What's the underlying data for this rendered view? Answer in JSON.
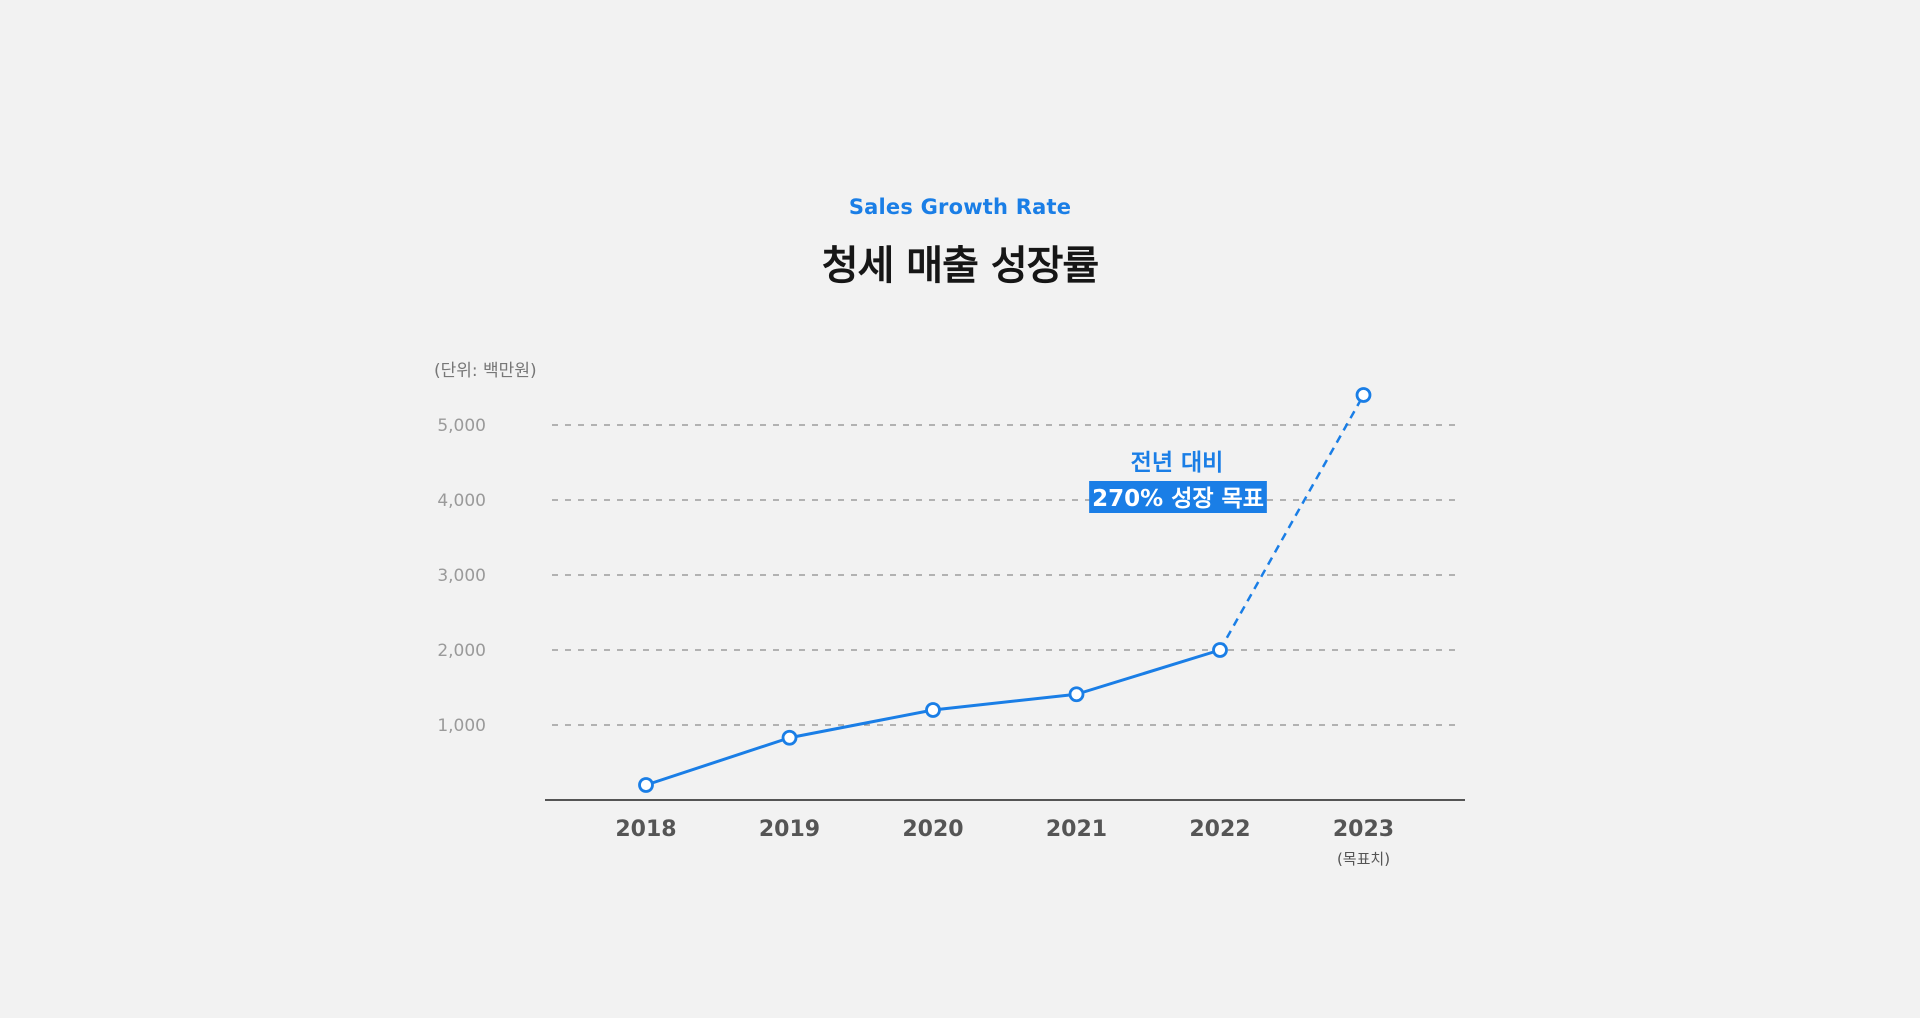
{
  "header": {
    "subtitle": "Sales Growth Rate",
    "title": "청세 매출 성장률"
  },
  "chart_data": {
    "type": "line",
    "title": "청세 매출 성장률",
    "subtitle": "Sales Growth Rate",
    "unit_label": "(단위: 백만원)",
    "x": [
      "2018",
      "2019",
      "2020",
      "2021",
      "2022",
      "2023"
    ],
    "x_sub_labels": [
      "",
      "",
      "",
      "",
      "",
      "(목표치)"
    ],
    "y_ticks": [
      1000,
      2000,
      3000,
      4000,
      5000
    ],
    "y_tick_labels": [
      "1,000",
      "2,000",
      "3,000",
      "4,000",
      "5,000"
    ],
    "ylim": [
      0,
      5400
    ],
    "grid": true,
    "grid_style": "dashed",
    "series": [
      {
        "values": [
          200,
          830,
          1200,
          1410,
          2000,
          5400
        ],
        "dashed_from_index": 4
      }
    ],
    "annotation": {
      "line1": "전년 대비",
      "line2": "270% 성장 목표"
    },
    "colors": {
      "line": "#1a7ee6",
      "grid": "#8c8c8c",
      "axis": "#555555"
    }
  }
}
